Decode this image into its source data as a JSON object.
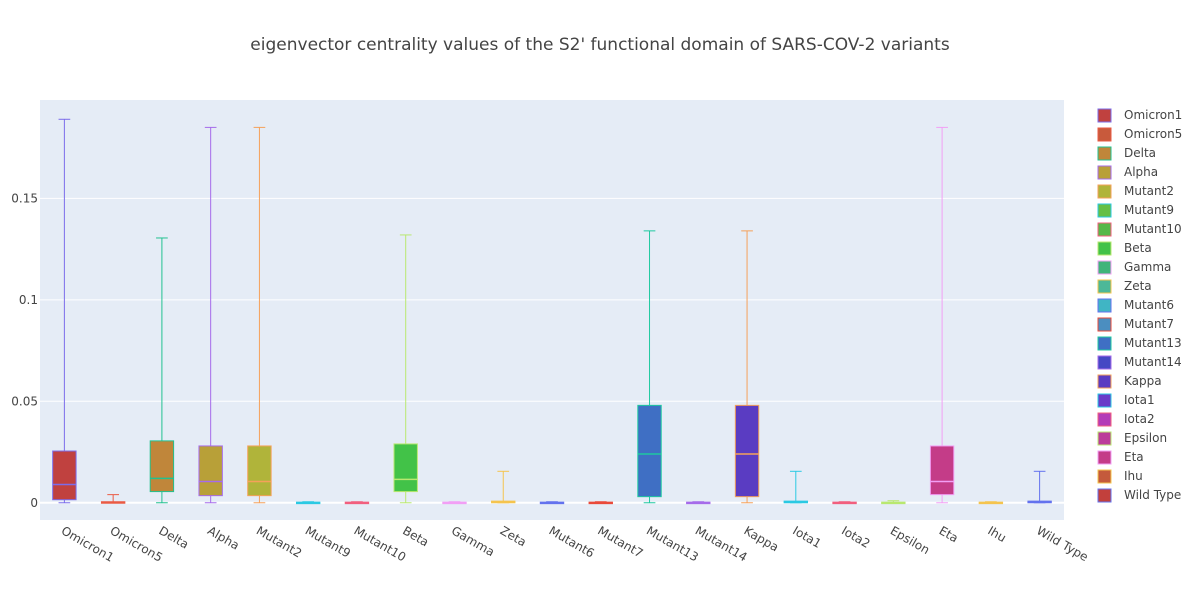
{
  "chart_data": {
    "type": "box",
    "title": "eigenvector centrality values of the S2' functional domain of SARS-COV-2 variants",
    "xlabel": "",
    "ylabel": "",
    "ylim": [
      -0.0085,
      0.1985
    ],
    "yticks": [
      0,
      0.05,
      0.1,
      0.15
    ],
    "ytick_labels": [
      "0",
      "0.05",
      "0.1",
      "0.15"
    ],
    "grid": true,
    "legend_position": "right",
    "series": [
      {
        "name": "Omicron1",
        "min": 0,
        "q1": 0.0015,
        "median": 0.009,
        "q3": 0.0255,
        "max": 0.189,
        "fill": "#c0413f",
        "line": "#7b6cea"
      },
      {
        "name": "Omicron5",
        "min": 0,
        "q1": 0,
        "median": 0,
        "q3": 0.0005,
        "max": 0.004,
        "fill": "#c85a3c",
        "line": "#ea5a43"
      },
      {
        "name": "Delta",
        "min": 0,
        "q1": 0.0055,
        "median": 0.012,
        "q3": 0.0305,
        "max": 0.1305,
        "fill": "#c0863a",
        "line": "#22c190"
      },
      {
        "name": "Alpha",
        "min": 0,
        "q1": 0.0035,
        "median": 0.0105,
        "q3": 0.028,
        "max": 0.185,
        "fill": "#b8a038",
        "line": "#a66bea"
      },
      {
        "name": "Mutant2",
        "min": 0,
        "q1": 0.0035,
        "median": 0.0105,
        "q3": 0.028,
        "max": 0.185,
        "fill": "#b0b43a",
        "line": "#f5a15a"
      },
      {
        "name": "Mutant9",
        "min": 0,
        "q1": 0,
        "median": 0,
        "q3": 0.0003,
        "max": 0.0005,
        "fill": "#66bf45",
        "line": "#2bc9e3"
      },
      {
        "name": "Mutant10",
        "min": 0,
        "q1": 0,
        "median": 0,
        "q3": 0.0003,
        "max": 0.0005,
        "fill": "#55b848",
        "line": "#f25f7e"
      },
      {
        "name": "Beta",
        "min": 0,
        "q1": 0.0055,
        "median": 0.0115,
        "q3": 0.029,
        "max": 0.132,
        "fill": "#42c248",
        "line": "#b9e870"
      },
      {
        "name": "Gamma",
        "min": 0,
        "q1": 0,
        "median": 0,
        "q3": 0.0003,
        "max": 0.0005,
        "fill": "#40b47a",
        "line": "#f29ff5"
      },
      {
        "name": "Zeta",
        "min": 0,
        "q1": 0,
        "median": 0.0003,
        "q3": 0.0008,
        "max": 0.0155,
        "fill": "#4cb898",
        "line": "#f5c44e"
      },
      {
        "name": "Mutant6",
        "min": 0,
        "q1": 0,
        "median": 0,
        "q3": 0.0003,
        "max": 0.0005,
        "fill": "#40b5c4",
        "line": "#6372ee"
      },
      {
        "name": "Mutant7",
        "min": 0,
        "q1": 0,
        "median": 0,
        "q3": 0.0003,
        "max": 0.0005,
        "fill": "#4b8ec0",
        "line": "#ea4a3a"
      },
      {
        "name": "Mutant13",
        "min": 0,
        "q1": 0.003,
        "median": 0.024,
        "q3": 0.048,
        "max": 0.134,
        "fill": "#3f6fc4",
        "line": "#1fc9a0"
      },
      {
        "name": "Mutant14",
        "min": 0,
        "q1": 0,
        "median": 0,
        "q3": 0.0003,
        "max": 0.0005,
        "fill": "#4548c4",
        "line": "#a66bea"
      },
      {
        "name": "Kappa",
        "min": 0,
        "q1": 0.003,
        "median": 0.024,
        "q3": 0.048,
        "max": 0.134,
        "fill": "#5a3cc2",
        "line": "#f5a15a"
      },
      {
        "name": "Iota1",
        "min": 0,
        "q1": 0,
        "median": 0.0003,
        "q3": 0.0008,
        "max": 0.0155,
        "fill": "#6a3cc8",
        "line": "#2bc9e3"
      },
      {
        "name": "Iota2",
        "min": 0,
        "q1": 0,
        "median": 0,
        "q3": 0.0003,
        "max": 0.0005,
        "fill": "#b43cb8",
        "line": "#f25f7e"
      },
      {
        "name": "Epsilon",
        "min": 0,
        "q1": 0,
        "median": 0,
        "q3": 0.0003,
        "max": 0.001,
        "fill": "#bc3c9a",
        "line": "#b9e870"
      },
      {
        "name": "Eta",
        "min": 0,
        "q1": 0.004,
        "median": 0.0105,
        "q3": 0.028,
        "max": 0.185,
        "fill": "#c43c88",
        "line": "#f29ff5"
      },
      {
        "name": "Ihu",
        "min": 0,
        "q1": 0,
        "median": 0,
        "q3": 0.0003,
        "max": 0.0005,
        "fill": "#c45a3c",
        "line": "#f5c44e"
      },
      {
        "name": "Wild Type",
        "min": 0,
        "q1": 0,
        "median": 0.0003,
        "q3": 0.0008,
        "max": 0.0155,
        "fill": "#c2403c",
        "line": "#6372ee"
      }
    ]
  }
}
